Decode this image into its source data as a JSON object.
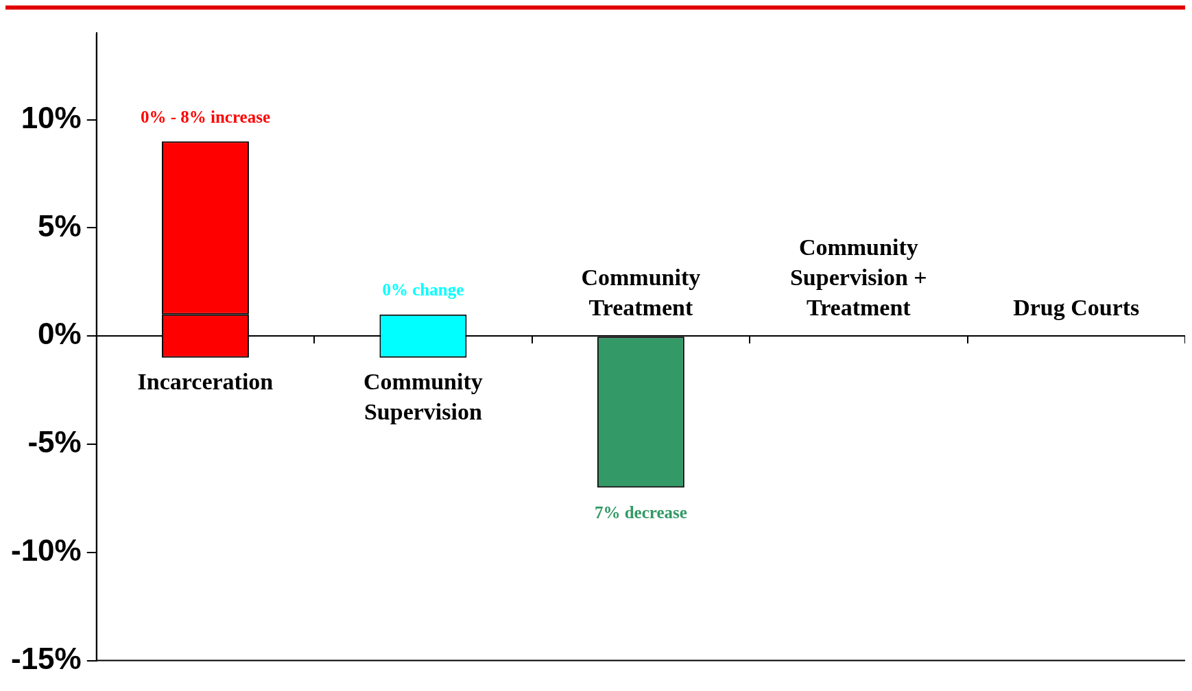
{
  "chart_data": {
    "type": "bar",
    "categories": [
      "Incarceration",
      "Community Supervision",
      "Community Treatment",
      "Community Supervision + Treatment",
      "Drug Courts"
    ],
    "series": [
      {
        "colors": [
          "#ff0000",
          "#00ffff",
          "#339966",
          null,
          null
        ],
        "base": [
          -1,
          -1,
          0,
          null,
          null
        ],
        "values": [
          2,
          2,
          -7,
          null,
          null
        ]
      },
      {
        "colors": [
          "#ff0000",
          null,
          null,
          null,
          null
        ],
        "base": [
          1,
          null,
          null,
          null,
          null
        ],
        "values": [
          8,
          null,
          null,
          null,
          null
        ]
      }
    ],
    "ylim": [
      -15,
      14
    ],
    "yticks": [
      {
        "value": -15,
        "label": "-15%"
      },
      {
        "value": -10,
        "label": "-10%"
      },
      {
        "value": -5,
        "label": "-5%"
      },
      {
        "value": 0,
        "label": "0%"
      },
      {
        "value": 5,
        "label": "5%"
      },
      {
        "value": 10,
        "label": "10%"
      }
    ],
    "grid": false,
    "legend": false,
    "annotations": [
      "0% - 8% increase",
      "0% change",
      "7% decrease"
    ]
  }
}
